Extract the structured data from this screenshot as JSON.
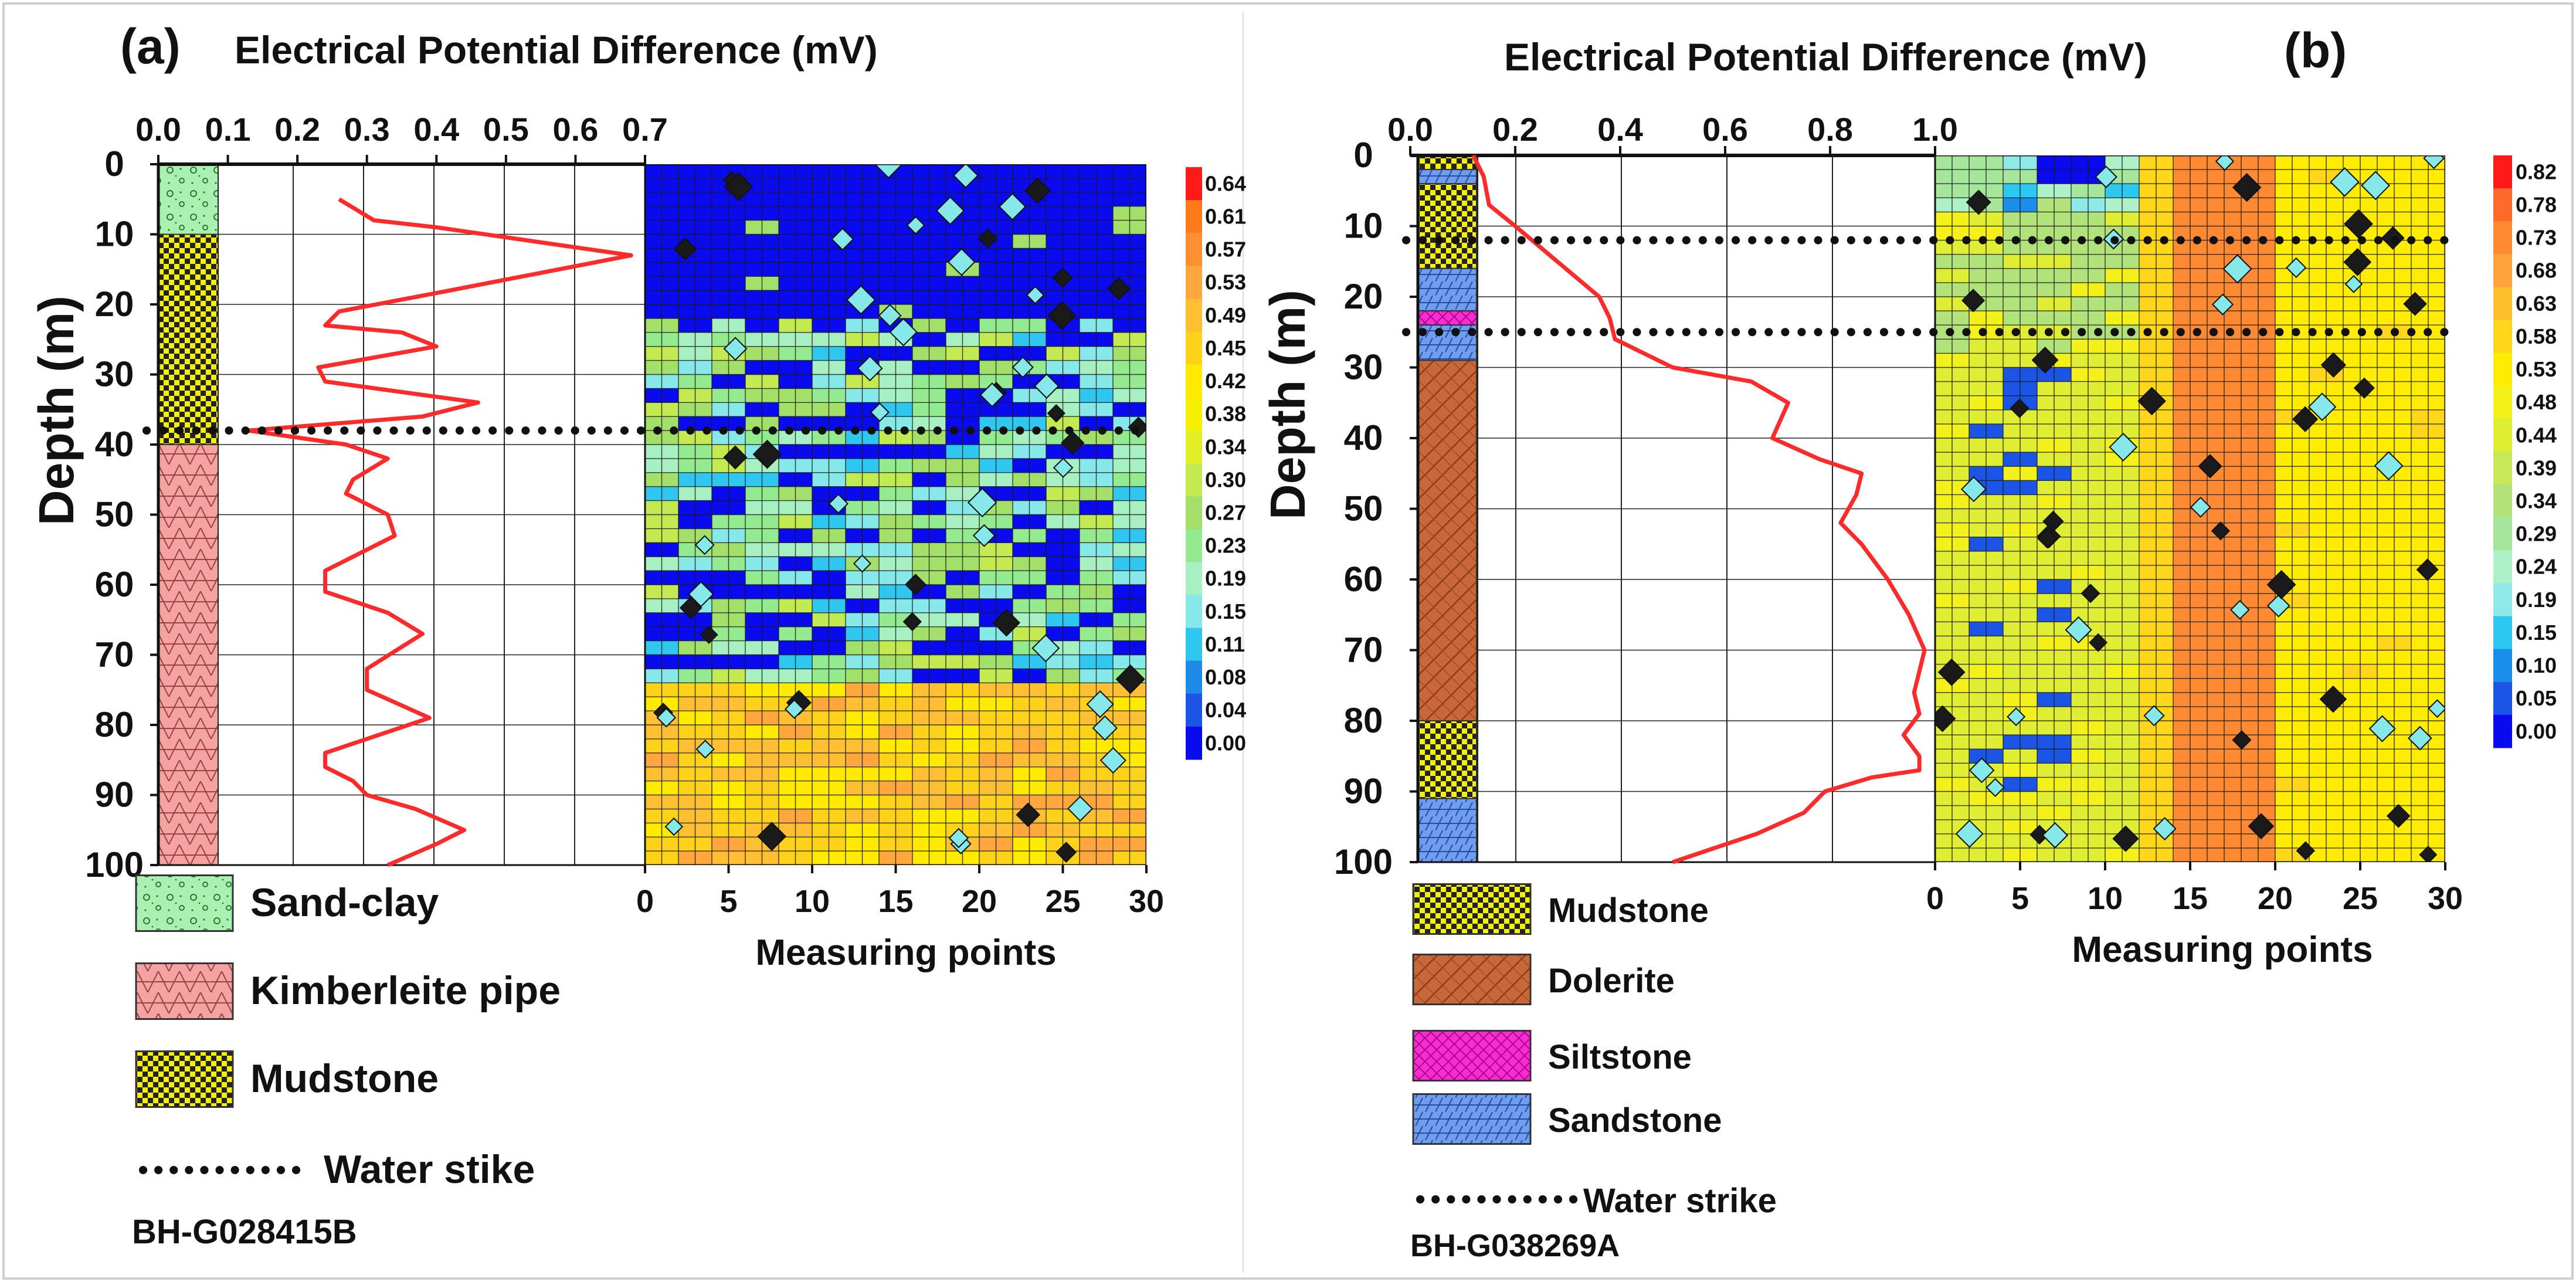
{
  "chart_data": [
    {
      "type": "line",
      "panel_label": "(a)",
      "title": "Electrical Potential Difference (mV)",
      "xlabel": "",
      "ylabel": "Depth (m)",
      "xlim": [
        0,
        0.7
      ],
      "ylim": [
        0,
        100
      ],
      "x_ticks": [
        "0.0",
        "0.1",
        "0.2",
        "0.3",
        "0.4",
        "0.5",
        "0.6",
        "0.7"
      ],
      "y_ticks": [
        "0",
        "10",
        "20",
        "30",
        "40",
        "50",
        "60",
        "70",
        "80",
        "90",
        "100"
      ],
      "series": [
        {
          "name": "Electrical potential difference",
          "color": "#ff2a2a",
          "points": [
            [
              0.26,
              5
            ],
            [
              0.31,
              8
            ],
            [
              0.4,
              9
            ],
            [
              0.68,
              13
            ],
            [
              0.42,
              18
            ],
            [
              0.26,
              21
            ],
            [
              0.24,
              23
            ],
            [
              0.35,
              24
            ],
            [
              0.4,
              26
            ],
            [
              0.23,
              29
            ],
            [
              0.24,
              31
            ],
            [
              0.46,
              34
            ],
            [
              0.38,
              36
            ],
            [
              0.13,
              38
            ],
            [
              0.27,
              40
            ],
            [
              0.33,
              42
            ],
            [
              0.28,
              45
            ],
            [
              0.27,
              47
            ],
            [
              0.33,
              50
            ],
            [
              0.34,
              53
            ],
            [
              0.24,
              58
            ],
            [
              0.24,
              61
            ],
            [
              0.33,
              64
            ],
            [
              0.38,
              67
            ],
            [
              0.3,
              72
            ],
            [
              0.3,
              75
            ],
            [
              0.39,
              79
            ],
            [
              0.3,
              82
            ],
            [
              0.24,
              84
            ],
            [
              0.24,
              86
            ],
            [
              0.28,
              88
            ],
            [
              0.3,
              90
            ],
            [
              0.37,
              92
            ],
            [
              0.44,
              95
            ],
            [
              0.4,
              97
            ],
            [
              0.33,
              100
            ]
          ]
        }
      ],
      "water_strike_depth": 38,
      "lithology": [
        {
          "name": "Sand-clay",
          "top": 0,
          "bottom": 10
        },
        {
          "name": "Mudstone",
          "top": 10,
          "bottom": 40
        },
        {
          "name": "Kimberleite pipe",
          "top": 40,
          "bottom": 100
        }
      ],
      "contour": {
        "xlabel": "Measuring points",
        "x_ticks": [
          "0",
          "5",
          "10",
          "15",
          "20",
          "25",
          "30"
        ],
        "xlim": [
          0,
          30
        ],
        "ylim": [
          0,
          100
        ],
        "colorbar_ticks": [
          "0.64",
          "0.61",
          "0.57",
          "0.53",
          "0.49",
          "0.45",
          "0.42",
          "0.38",
          "0.34",
          "0.30",
          "0.27",
          "0.23",
          "0.19",
          "0.15",
          "0.11",
          "0.08",
          "0.04",
          "0.00"
        ],
        "colorbar_colors": [
          "#ff1a1a",
          "#ff7a1a",
          "#ff8f33",
          "#ffa63d",
          "#ffbf33",
          "#ffd21a",
          "#ffea00",
          "#f6f000",
          "#e2ef27",
          "#c4ea52",
          "#a3e06a",
          "#94eb8f",
          "#a6f0c2",
          "#86e8e8",
          "#2fc6f0",
          "#1c8ae6",
          "#1a55e6",
          "#0a0aee"
        ],
        "regions": [
          {
            "from_depth": 0,
            "to_depth": 22,
            "dominant": "0.00"
          },
          {
            "from_depth": 22,
            "to_depth": 75,
            "dominant": "mixed 0.00-0.45"
          },
          {
            "from_depth": 75,
            "to_depth": 100,
            "dominant": "0.45"
          }
        ]
      },
      "legend": [
        {
          "label": "Sand-clay",
          "pattern": "sandclay"
        },
        {
          "label": "Kimberleite pipe",
          "pattern": "kimberlite"
        },
        {
          "label": "Mudstone",
          "pattern": "mudstone"
        },
        {
          "label": "Water stike",
          "pattern": "dots"
        }
      ],
      "borehole_id": "BH-G028415B"
    },
    {
      "type": "line",
      "panel_label": "(b)",
      "title": "Electrical Potential Difference (mV)",
      "xlabel": "",
      "ylabel": "Depth (m)",
      "xlim": [
        0,
        1.0
      ],
      "ylim": [
        0,
        100
      ],
      "x_ticks": [
        "0.0",
        "0.2",
        "0.4",
        "0.6",
        "0.8",
        "1.0"
      ],
      "y_ticks": [
        "0",
        "10",
        "20",
        "30",
        "40",
        "50",
        "60",
        "70",
        "80",
        "90",
        "100"
      ],
      "series": [
        {
          "name": "Electrical potential difference",
          "color": "#ff2a2a",
          "points": [
            [
              0.12,
              0
            ],
            [
              0.14,
              3
            ],
            [
              0.15,
              7
            ],
            [
              0.2,
              10
            ],
            [
              0.28,
              15
            ],
            [
              0.36,
              20
            ],
            [
              0.38,
              23
            ],
            [
              0.39,
              26
            ],
            [
              0.5,
              30
            ],
            [
              0.65,
              32
            ],
            [
              0.72,
              35
            ],
            [
              0.69,
              40
            ],
            [
              0.78,
              43
            ],
            [
              0.86,
              45
            ],
            [
              0.85,
              48
            ],
            [
              0.82,
              52
            ],
            [
              0.86,
              55
            ],
            [
              0.91,
              60
            ],
            [
              0.95,
              65
            ],
            [
              0.98,
              70
            ],
            [
              0.97,
              73
            ],
            [
              0.96,
              76
            ],
            [
              0.97,
              79
            ],
            [
              0.94,
              82
            ],
            [
              0.97,
              85
            ],
            [
              0.97,
              87
            ],
            [
              0.88,
              88
            ],
            [
              0.79,
              90
            ],
            [
              0.75,
              93
            ],
            [
              0.66,
              96
            ],
            [
              0.5,
              100
            ]
          ]
        }
      ],
      "water_strike_depths": [
        12,
        25
      ],
      "lithology": [
        {
          "name": "Mudstone",
          "top": 0,
          "bottom": 2
        },
        {
          "name": "Sandstone",
          "top": 2,
          "bottom": 4
        },
        {
          "name": "Mudstone",
          "top": 4,
          "bottom": 16
        },
        {
          "name": "Sandstone",
          "top": 16,
          "bottom": 22
        },
        {
          "name": "Siltstone",
          "top": 22,
          "bottom": 24
        },
        {
          "name": "Sandstone",
          "top": 24,
          "bottom": 29
        },
        {
          "name": "Dolerite",
          "top": 29,
          "bottom": 80
        },
        {
          "name": "Mudstone",
          "top": 80,
          "bottom": 91
        },
        {
          "name": "Sandstone",
          "top": 91,
          "bottom": 100
        }
      ],
      "contour": {
        "xlabel": "Measuring points",
        "x_ticks": [
          "0",
          "5",
          "10",
          "15",
          "20",
          "25",
          "30"
        ],
        "xlim": [
          0,
          30
        ],
        "ylim": [
          0,
          100
        ],
        "colorbar_ticks": [
          "0.82",
          "0.78",
          "0.73",
          "0.68",
          "0.63",
          "0.58",
          "0.53",
          "0.48",
          "0.44",
          "0.39",
          "0.34",
          "0.29",
          "0.24",
          "0.19",
          "0.15",
          "0.10",
          "0.05",
          "0.00"
        ],
        "colorbar_colors": [
          "#ff1a1a",
          "#ff6a2a",
          "#ff8a33",
          "#ffa33a",
          "#ffbf2a",
          "#ffd61a",
          "#ffec00",
          "#f3f01a",
          "#e0ee33",
          "#c8e85a",
          "#b2e37a",
          "#a6e69a",
          "#aef0c8",
          "#8ee9e8",
          "#2cc8f2",
          "#1a8ee8",
          "#1a55e6",
          "#0a0aee"
        ],
        "regions": [
          {
            "from_point": 0,
            "to_point": 13,
            "dominant": "0.44"
          },
          {
            "from_point": 13,
            "to_point": 21,
            "dominant": "0.73"
          },
          {
            "from_point": 21,
            "to_point": 30,
            "dominant": "0.53"
          }
        ]
      },
      "legend": [
        {
          "label": "Mudstone",
          "pattern": "mudstone"
        },
        {
          "label": "Dolerite",
          "pattern": "dolerite"
        },
        {
          "label": "Siltstone",
          "pattern": "siltstone"
        },
        {
          "label": "Sandstone",
          "pattern": "sandstone"
        },
        {
          "label": "Water strike",
          "pattern": "dots"
        }
      ],
      "borehole_id": "BH-G038269A"
    }
  ]
}
